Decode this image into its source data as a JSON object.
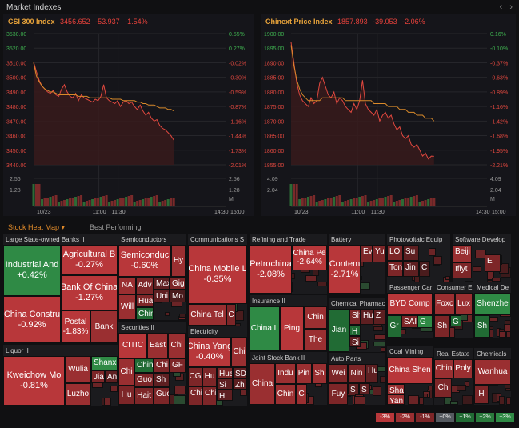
{
  "window": {
    "title": "Market Indexes",
    "nav_prev": "‹",
    "nav_next": "›"
  },
  "charts": [
    {
      "name": "CSI 300 Index",
      "price": "3456.652",
      "change": "-53.937",
      "pct": "-1.54%",
      "y_left": [
        "3530.00",
        "3520.00",
        "3510.00",
        "3500.00",
        "3490.00",
        "3480.00",
        "3470.00",
        "3460.00",
        "3450.00",
        "3440.00"
      ],
      "y_right": [
        "0.55%",
        "0.27%",
        "-0.02%",
        "-0.30%",
        "-0.59%",
        "-0.87%",
        "-1.16%",
        "-1.44%",
        "-1.73%",
        "-2.01%"
      ],
      "vol_left": [
        "2.56",
        "1.28"
      ],
      "vol_right": [
        "2.56",
        "1.28",
        "M"
      ],
      "x_ticks": [
        "10/23",
        "11:00",
        "11:30",
        "14:30",
        "15:00"
      ]
    },
    {
      "name": "Chinext Price Index",
      "price": "1857.893",
      "change": "-39.053",
      "pct": "-2.06%",
      "y_left": [
        "1900.00",
        "1895.00",
        "1890.00",
        "1885.00",
        "1880.00",
        "1875.00",
        "1870.00",
        "1865.00",
        "1860.00",
        "1855.00"
      ],
      "y_right": [
        "0.16%",
        "-0.10%",
        "-0.37%",
        "-0.63%",
        "-0.89%",
        "-1.16%",
        "-1.42%",
        "-1.68%",
        "-1.95%",
        "-2.21%"
      ],
      "vol_left": [
        "4.09",
        "2.04"
      ],
      "vol_right": [
        "4.09",
        "2.04",
        "M"
      ],
      "x_ticks": [
        "10/23",
        "11:00",
        "11:30",
        "14:30",
        "15:00"
      ]
    }
  ],
  "chart_data": [
    {
      "type": "line",
      "title": "CSI 300 Index",
      "series": [],
      "y": [
        3510.6,
        3504,
        3498,
        3494,
        3492,
        3490,
        3489,
        3491,
        3488,
        3487,
        3492,
        3495,
        3490,
        3487,
        3486,
        3489,
        3484,
        3488,
        3486,
        3485,
        3484,
        3483,
        3485,
        3484,
        3487,
        3495,
        3486,
        3484,
        3483,
        3482,
        3484,
        3480,
        3483,
        3484,
        3482,
        3483,
        3480,
        3478,
        3481,
        3477,
        3474,
        3476,
        3472,
        3470,
        3471,
        3467,
        3465,
        3464,
        3462,
        3460,
        3457
      ],
      "ma": [
        3510,
        3501,
        3497,
        3494,
        3492,
        3491,
        3490,
        3490,
        3489,
        3488,
        3488,
        3488,
        3488,
        3488,
        3488,
        3488,
        3487,
        3487,
        3487,
        3487,
        3486,
        3486,
        3486,
        3486,
        3486,
        3486,
        3486,
        3486,
        3485,
        3485,
        3485,
        3485,
        3484,
        3484,
        3484,
        3484,
        3484,
        3483,
        3483,
        3482,
        3482,
        3481,
        3481,
        3481,
        3480,
        3479,
        3479,
        3479,
        3478,
        3478,
        3477
      ],
      "ylim": [
        3440,
        3530
      ]
    },
    {
      "type": "line",
      "title": "Chinext Price Index",
      "series": [],
      "y": [
        1897,
        1890,
        1883,
        1879,
        1877,
        1876,
        1875,
        1878,
        1876,
        1877,
        1883,
        1885,
        1882,
        1879,
        1878,
        1880,
        1876,
        1878,
        1877,
        1875,
        1874,
        1873,
        1876,
        1874,
        1877,
        1884,
        1876,
        1874,
        1873,
        1872,
        1874,
        1870,
        1872,
        1873,
        1871,
        1872,
        1869,
        1867,
        1868,
        1865,
        1864,
        1865,
        1862,
        1861,
        1862,
        1860,
        1858,
        1859,
        1857,
        1858,
        1857.9
      ],
      "ma": [
        1896,
        1889,
        1884,
        1881,
        1879,
        1878,
        1877,
        1877,
        1877,
        1877,
        1877,
        1878,
        1878,
        1878,
        1878,
        1878,
        1878,
        1878,
        1878,
        1877,
        1877,
        1877,
        1877,
        1877,
        1877,
        1877,
        1877,
        1877,
        1877,
        1876,
        1876,
        1876,
        1876,
        1876,
        1875,
        1875,
        1875,
        1875,
        1874,
        1874,
        1874,
        1873,
        1873,
        1873,
        1872,
        1872,
        1872,
        1871,
        1871,
        1871,
        1870
      ],
      "ylim": [
        1855,
        1900
      ]
    }
  ],
  "tabs": {
    "active": "Stock Heat Map",
    "caret": "▾",
    "other": "Best Performing"
  },
  "colors": {
    "up": "#2f8a45",
    "down": "#b8373a",
    "accent": "#e08a2a"
  },
  "heatmap": {
    "sections": [
      {
        "id": "banks",
        "header": "Large State-owned Banks II"
      },
      {
        "id": "semis",
        "header": "Semiconductors"
      },
      {
        "id": "comms",
        "header": "Communications S"
      },
      {
        "id": "refining",
        "header": "Refining and Trade"
      },
      {
        "id": "battery",
        "header": "Battery"
      },
      {
        "id": "pv",
        "header": "Photovoltaic Equip"
      },
      {
        "id": "software",
        "header": "Software Develop"
      },
      {
        "id": "liquor",
        "header": "Liquor II"
      },
      {
        "id": "secs",
        "header": "Securities II"
      },
      {
        "id": "elec",
        "header": "Electricity"
      },
      {
        "id": "ins",
        "header": "Insurance II"
      },
      {
        "id": "chem",
        "header": "Chemical Pharmac"
      },
      {
        "id": "pcar",
        "header": "Passenger Car"
      },
      {
        "id": "cons",
        "header": "Consumer E"
      },
      {
        "id": "med",
        "header": "Medical De"
      },
      {
        "id": "jsb",
        "header": "Joint Stock Bank II"
      },
      {
        "id": "autop",
        "header": "Auto Parts"
      },
      {
        "id": "coal",
        "header": "Coal Mining"
      },
      {
        "id": "re",
        "header": "Real Estate"
      },
      {
        "id": "chems",
        "header": "Chemicals"
      }
    ],
    "tiles": {
      "icbc": {
        "n": "Industrial And",
        "p": "+0.42%"
      },
      "agri": {
        "n": "Agricultural B",
        "p": "-0.27%"
      },
      "boc": {
        "n": "Bank Of China",
        "p": "-1.27%"
      },
      "ccb": {
        "n": "China Constru",
        "p": "-0.92%"
      },
      "postal": {
        "n": "Postal",
        "p": "-1.83%"
      },
      "bank": {
        "n": "Bank"
      },
      "semicon": {
        "n": "Semiconduc",
        "p": "-0.60%"
      },
      "hy": {
        "n": "Hy"
      },
      "na": {
        "n": "NA"
      },
      "adv": {
        "n": "Adv"
      },
      "max": {
        "n": "Max"
      },
      "gig": {
        "n": "Gig"
      },
      "hua": {
        "n": "Hua"
      },
      "uni": {
        "n": "Uni"
      },
      "mo": {
        "n": "Mo"
      },
      "will": {
        "n": "Will"
      },
      "chin_s": {
        "n": "Chin"
      },
      "chmob": {
        "n": "China Mobile L",
        "p": "-0.35%"
      },
      "chtel": {
        "n": "China Tel"
      },
      "c_cm": {
        "n": "C"
      },
      "petro": {
        "n": "Petrochina",
        "p": "-2.08%"
      },
      "chpe": {
        "n": "China Pe",
        "p": "-2.64%"
      },
      "catl": {
        "n": "Contem",
        "p": "-2.71%"
      },
      "ev": {
        "n": "Ev"
      },
      "yu": {
        "n": "Yu"
      },
      "lo": {
        "n": "LO"
      },
      "su": {
        "n": "Su"
      },
      "ton": {
        "n": "Ton"
      },
      "jin": {
        "n": "Jin"
      },
      "c_pv": {
        "n": "C"
      },
      "beiji": {
        "n": "Beiji"
      },
      "iflyt": {
        "n": "Iflyt"
      },
      "e_sw": {
        "n": "E"
      },
      "kwei": {
        "n": "Kweichow Mo",
        "p": "-0.81%"
      },
      "wulia": {
        "n": "Wulia"
      },
      "shanxi": {
        "n": "Shanxi"
      },
      "jian_l": {
        "n": "Jian"
      },
      "an_l": {
        "n": "An"
      },
      "luzho": {
        "n": "Luzho"
      },
      "citic": {
        "n": "CITIC"
      },
      "east": {
        "n": "East"
      },
      "chi_s1": {
        "n": "Chi"
      },
      "chi_s2": {
        "n": "Chi"
      },
      "chin_s2": {
        "n": "Chin"
      },
      "chi_s3": {
        "n": "Chi"
      },
      "gf": {
        "n": "GF"
      },
      "guo": {
        "n": "Guo"
      },
      "sh_s": {
        "n": "Sh"
      },
      "hu_s": {
        "n": "Hu"
      },
      "hait": {
        "n": "Hait"
      },
      "guo2": {
        "n": "Guo"
      },
      "chyang": {
        "n": "China Yang",
        "p": "-0.40%"
      },
      "chi_e": {
        "n": "Chi"
      },
      "cg": {
        "n": "CG"
      },
      "hu_e": {
        "n": "Hu"
      },
      "hua_e": {
        "n": "Hua"
      },
      "sdi": {
        "n": "SDI"
      },
      "chi_e2": {
        "n": "Chi"
      },
      "chi_e3": {
        "n": "Chi"
      },
      "si_e": {
        "n": "Si"
      },
      "zh_e": {
        "n": "Zh"
      },
      "h_e": {
        "n": "H"
      },
      "chinal": {
        "n": "China L"
      },
      "ping": {
        "n": "Ping"
      },
      "chin_i": {
        "n": "Chin"
      },
      "the_i": {
        "n": "The"
      },
      "jian_c": {
        "n": "Jian"
      },
      "sh_c": {
        "n": "Sh"
      },
      "hu_c": {
        "n": "Hu"
      },
      "z_c": {
        "n": "Z"
      },
      "h_c": {
        "n": "H"
      },
      "si_c": {
        "n": "Si"
      },
      "byd": {
        "n": "BYD Comp"
      },
      "gr": {
        "n": "Gr"
      },
      "sai": {
        "n": "SAI"
      },
      "g_p": {
        "n": "G"
      },
      "foxc": {
        "n": "Foxc"
      },
      "lux": {
        "n": "Lux"
      },
      "sh_ce": {
        "n": "Sh"
      },
      "g_ce": {
        "n": "G"
      },
      "shenzhe": {
        "n": "Shenzhe"
      },
      "sh_m": {
        "n": "Sh"
      },
      "china_j": {
        "n": "China"
      },
      "indu": {
        "n": "Indu"
      },
      "pin": {
        "n": "Pin"
      },
      "sh_j": {
        "n": "Sh"
      },
      "chin_j": {
        "n": "Chin"
      },
      "c_j": {
        "n": "C"
      },
      "wei": {
        "n": "Wei"
      },
      "nin": {
        "n": "Nin"
      },
      "hu_a": {
        "n": "Hu"
      },
      "s_a1": {
        "n": "S"
      },
      "s_a2": {
        "n": "S"
      },
      "fuy": {
        "n": "Fuy"
      },
      "chshen": {
        "n": "China Shen"
      },
      "sha": {
        "n": "Sha"
      },
      "yan": {
        "n": "Yan"
      },
      "chin_re": {
        "n": "Chin"
      },
      "poly": {
        "n": "Poly"
      },
      "ch_re": {
        "n": "Ch"
      },
      "wanhua": {
        "n": "Wanhua"
      },
      "h_ch": {
        "n": "H"
      }
    }
  },
  "legend": [
    "-3%",
    "-2%",
    "-1%",
    "+0%",
    "+1%",
    "+2%",
    "+3%"
  ]
}
